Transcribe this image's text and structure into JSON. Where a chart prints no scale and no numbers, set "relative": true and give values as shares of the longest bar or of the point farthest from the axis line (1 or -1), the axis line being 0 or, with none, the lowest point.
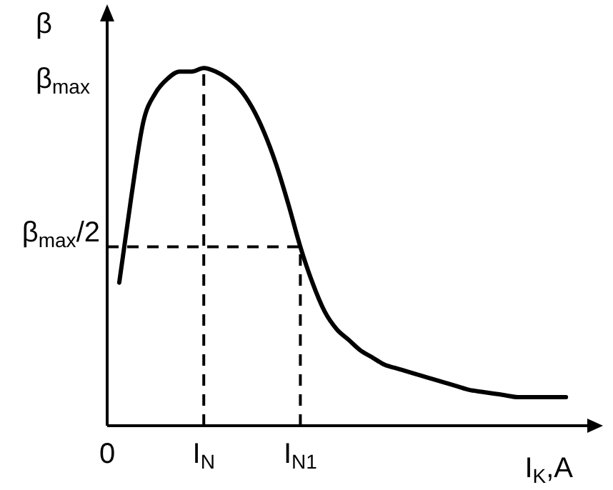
{
  "chart_data": {
    "type": "line",
    "relative": true,
    "ylabel": "β",
    "xlabel": "I$_{K}$,A",
    "categories": [
      "0",
      null,
      null,
      null,
      null,
      null,
      null,
      null,
      "I$_{N}$",
      null,
      null,
      null,
      null,
      null,
      null,
      null,
      "I$_{N1}$",
      null,
      null,
      null,
      null,
      null,
      null,
      null,
      null,
      null,
      null,
      null,
      null,
      null,
      null,
      null,
      null,
      null,
      null,
      null,
      null,
      null,
      null
    ],
    "series": [
      {
        "color": "#000000",
        "values": [
          null,
          0.4,
          0.64,
          0.85,
          0.93,
          0.97,
          0.99,
          0.99,
          1,
          0.99,
          0.97,
          0.94,
          0.89,
          0.82,
          0.73,
          0.62,
          0.5,
          0.4,
          0.32,
          0.27,
          0.24,
          0.21,
          0.19,
          0.17,
          0.16,
          0.15,
          0.14,
          0.13,
          0.12,
          0.11,
          0.1,
          0.095,
          0.09,
          0.085,
          0.08,
          0.08,
          0.08,
          0.08,
          0.08
        ]
      }
    ],
    "ref_lines": [
      {
        "axis": "x",
        "value": "I$_{N}$",
        "line_style": "dashed"
      },
      {
        "axis": "x",
        "value": "I$_{N1}$",
        "line_style": "dashed"
      },
      {
        "axis": "y",
        "value": 0.5,
        "label": "β$_{max}$/2",
        "line_style": "dashed"
      }
    ],
    "annotations": [
      "β$_{max}$"
    ],
    "marker": "none",
    "line_style": "solid"
  }
}
